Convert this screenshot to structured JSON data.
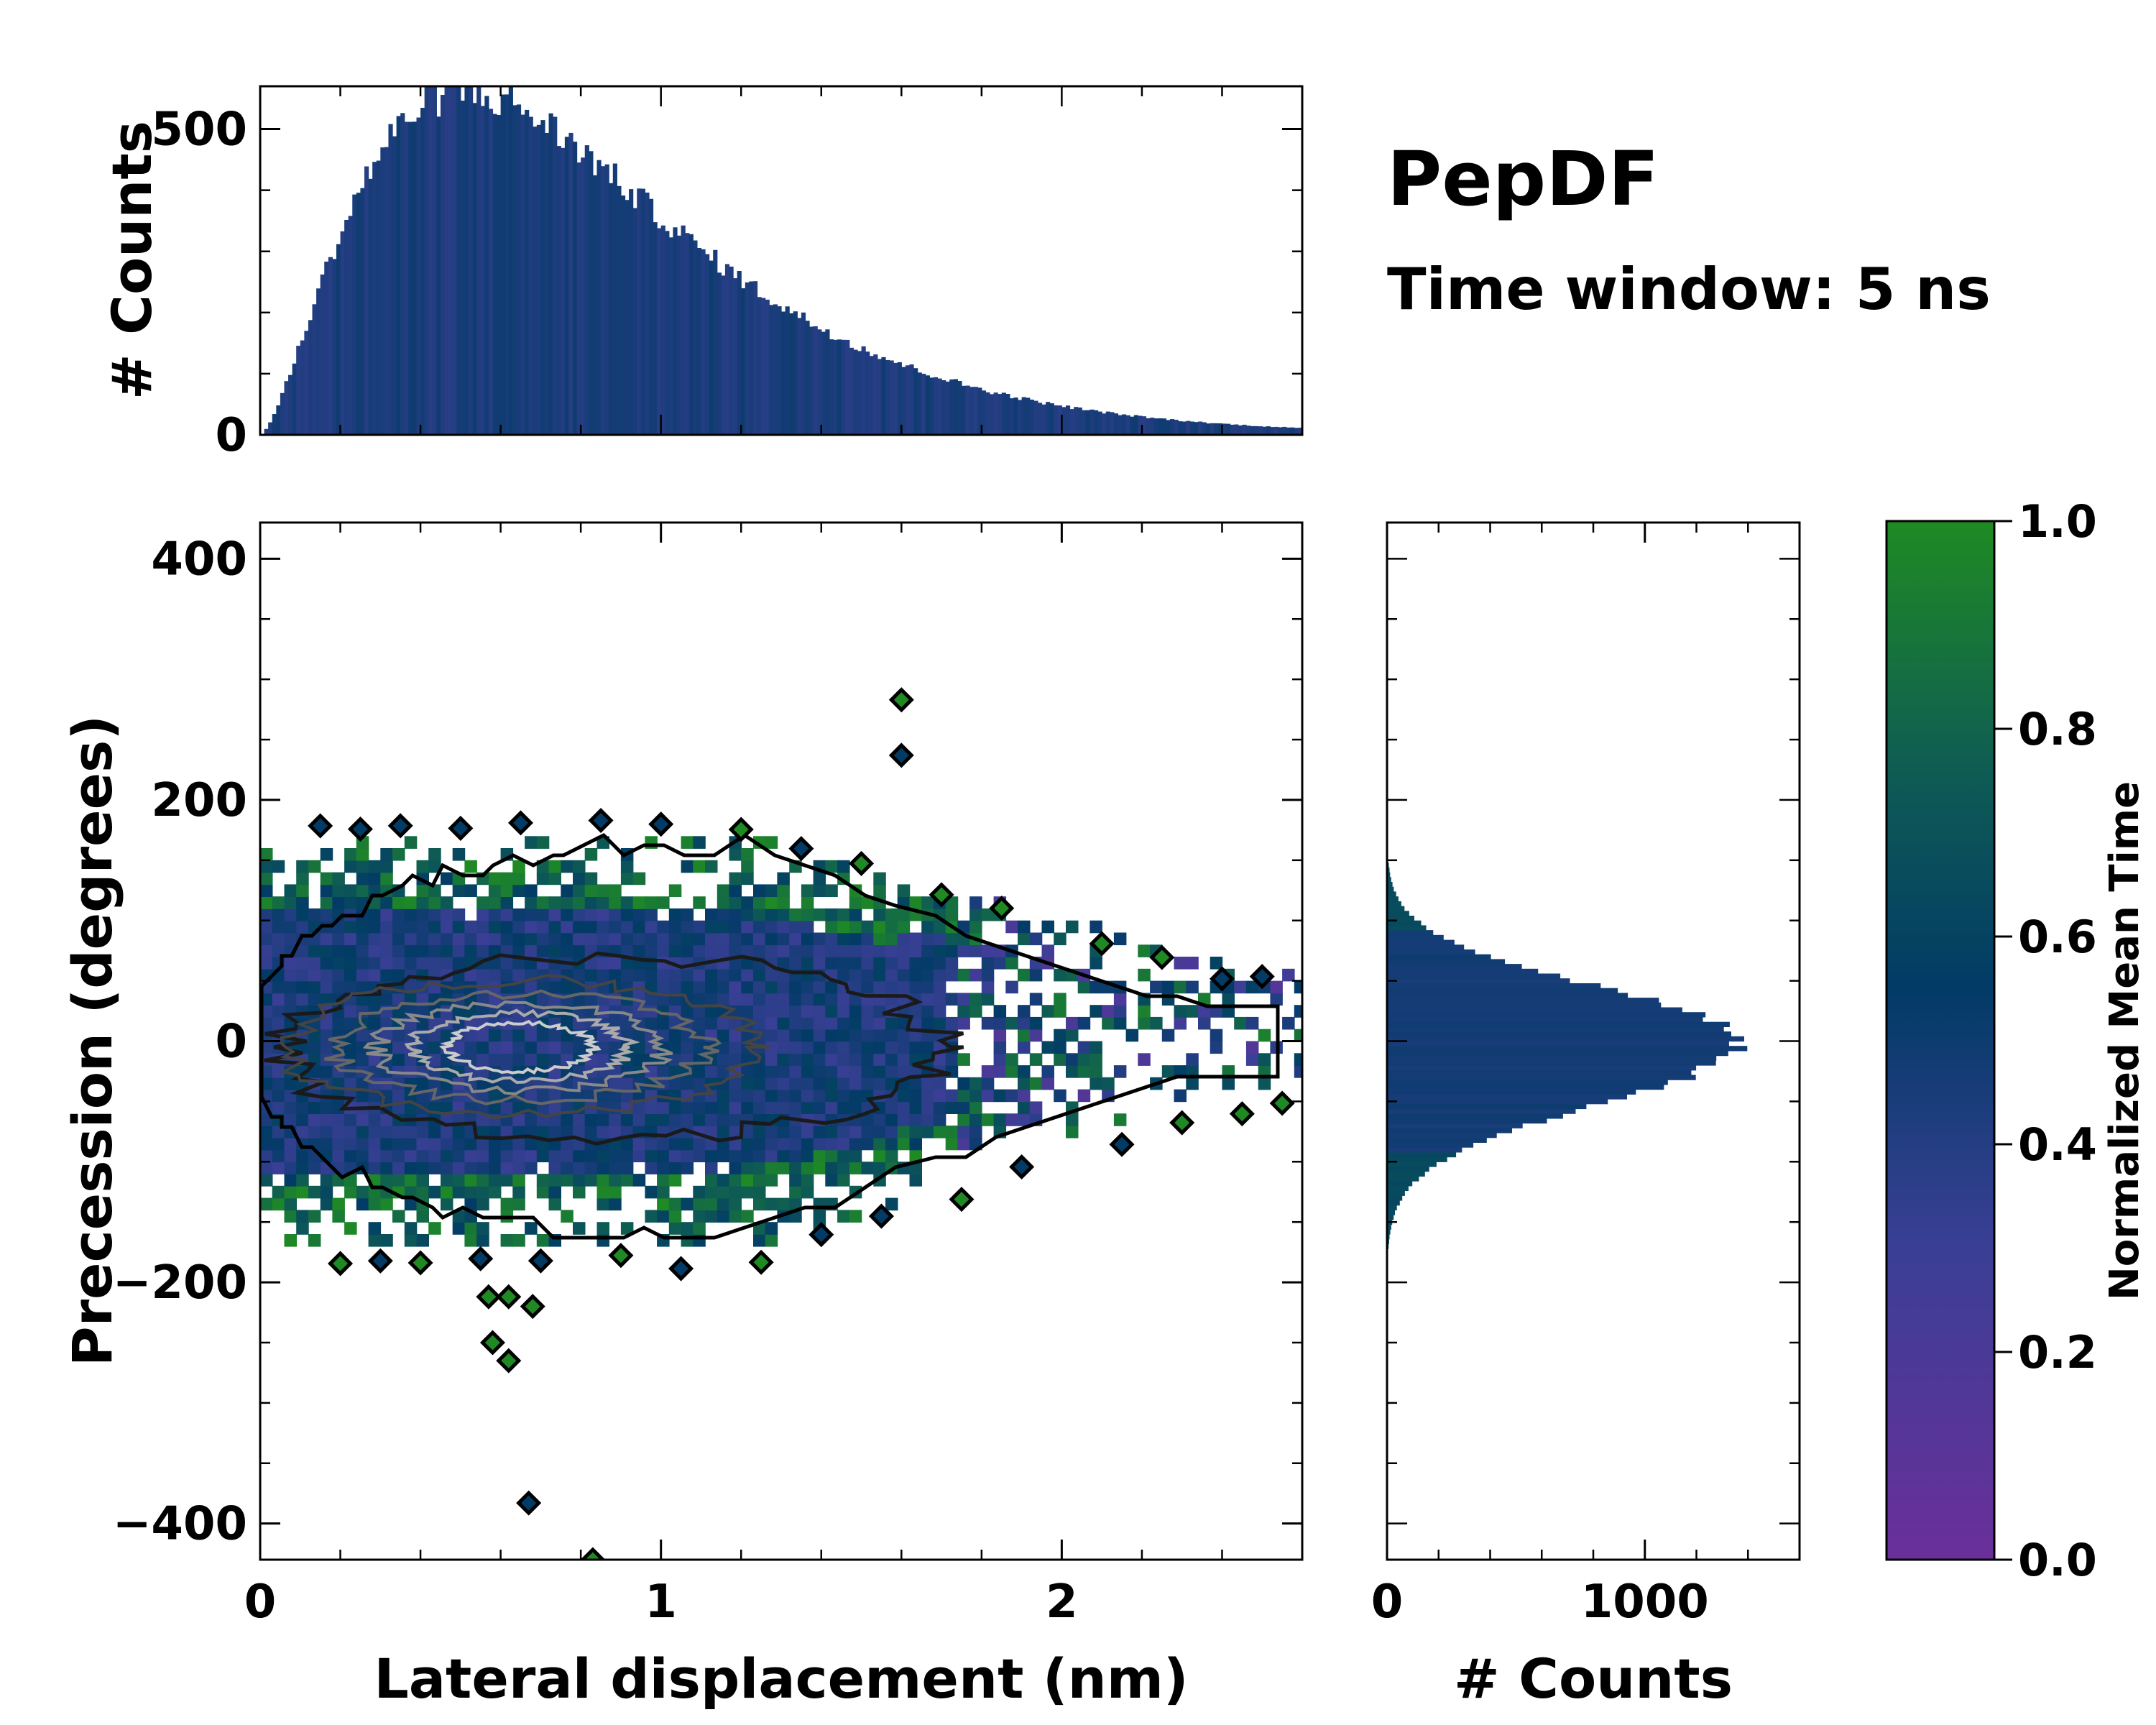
{
  "title": "PepDF",
  "subtitle": "Time window: 5 ns",
  "colors": {
    "low": "#6a2f9a",
    "mid": "#023b66",
    "high": "#1f8a24",
    "frame": "#000000"
  },
  "chart_data": [
    {
      "id": "top-histogram",
      "type": "bar",
      "ylabel": "# Counts",
      "xlim": [
        0,
        2.6
      ],
      "ylim": [
        0,
        570
      ],
      "yticks": [
        "0",
        "500"
      ],
      "yticks_values": [
        0,
        500
      ],
      "peak_x": 0.6,
      "peak_count": 560
    },
    {
      "id": "main-2d-histogram",
      "type": "heatmap",
      "xlabel": "Lateral displacement (nm)",
      "ylabel": "Precession (degrees)",
      "xlim": [
        0,
        2.6
      ],
      "ylim": [
        -430,
        430
      ],
      "xticks": [
        "0",
        "1",
        "2"
      ],
      "xticks_values": [
        0,
        1,
        2
      ],
      "yticks": [
        "400",
        "200",
        "0",
        "−200",
        "−400"
      ],
      "yticks_values": [
        400,
        200,
        0,
        -200,
        -400
      ],
      "core_center": [
        0.6,
        0
      ],
      "core_spread_nm": 0.45,
      "core_spread_deg": 60,
      "contour_levels_grays": [
        "#1a1a1a",
        "#444444",
        "#666666",
        "#888888",
        "#aaaaaa",
        "#cccccc"
      ],
      "outliers": [
        [
          0.83,
          -430
        ],
        [
          0.67,
          -383
        ],
        [
          0.58,
          -250
        ],
        [
          0.62,
          -265
        ],
        [
          0.57,
          -212
        ],
        [
          0.62,
          -212
        ],
        [
          0.68,
          -220
        ],
        [
          1.6,
          237
        ],
        [
          1.6,
          283
        ]
      ]
    },
    {
      "id": "right-histogram",
      "type": "bar",
      "xlabel": "# Counts",
      "xlim": [
        0,
        1600
      ],
      "xticks": [
        "0",
        "1000"
      ],
      "xticks_values": [
        0,
        1000
      ],
      "ylim": [
        -430,
        430
      ],
      "peak_count": 1380,
      "spread_deg": 45
    },
    {
      "id": "colorbar",
      "type": "colorbar",
      "label": "Normalized Mean Time",
      "range": [
        0,
        1
      ],
      "ticks": [
        "0.0",
        "0.2",
        "0.4",
        "0.6",
        "0.8",
        "1.0"
      ],
      "ticks_values": [
        0,
        0.2,
        0.4,
        0.6,
        0.8,
        1.0
      ]
    }
  ]
}
